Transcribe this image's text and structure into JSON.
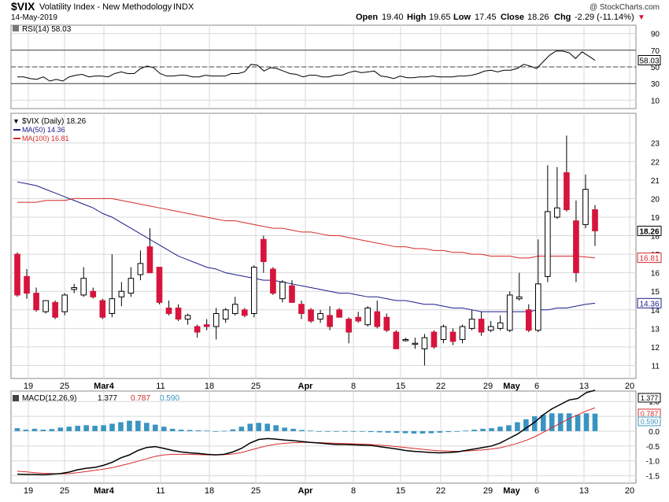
{
  "header": {
    "symbol": "$VIX",
    "name": "Volatility Index - New Methodology",
    "exchange": "INDX",
    "date": "14-May-2019",
    "watermark": "@ StockCharts.com",
    "open_label": "Open",
    "open": "19.40",
    "high_label": "High",
    "high": "19.65",
    "low_label": "Low",
    "low": "17.45",
    "close_label": "Close",
    "close": "18.26",
    "chg_label": "Chg",
    "chg": "-2.29 (-11.14%)",
    "chg_arrow": "▼"
  },
  "colors": {
    "up": "#ffffff",
    "down": "#d6143c",
    "ma50": "#1c1c8c",
    "ma100": "#d62a2a",
    "macd": "#000000",
    "signal": "#d62a2a",
    "hist": "#3a94c2",
    "grid": "#d8d8d8"
  },
  "chart_data": [
    {
      "type": "line",
      "panel": "rsi",
      "legend": "RSI(14) 58.03",
      "last_value_label": "58.03",
      "ylim": [
        0,
        100
      ],
      "yticks": [
        10,
        30,
        50,
        70,
        90
      ],
      "reference_lines": [
        30,
        50,
        70
      ],
      "values": [
        38,
        38,
        36,
        35,
        38,
        33,
        35,
        33,
        38,
        40,
        41,
        38,
        39,
        39,
        38,
        42,
        44,
        42,
        42,
        48,
        51,
        49,
        42,
        39,
        39,
        40,
        40,
        38,
        38,
        40,
        39,
        39,
        39,
        42,
        42,
        44,
        53,
        52,
        45,
        49,
        48,
        45,
        42,
        41,
        38,
        40,
        40,
        38,
        38,
        40,
        40,
        43,
        45,
        43,
        44,
        45,
        39,
        38,
        36,
        39,
        37,
        37,
        38,
        38,
        39,
        38,
        38,
        38,
        39,
        39,
        40,
        42,
        45,
        46,
        44,
        46,
        46,
        48,
        53,
        51,
        48,
        56,
        64,
        69,
        69,
        67,
        60,
        68,
        63,
        58
      ]
    },
    {
      "type": "candlestick",
      "panel": "price",
      "legend": "$VIX (Daily) 18.26",
      "ylim": [
        10.3,
        24.6
      ],
      "yticks": [
        11,
        12,
        13,
        14,
        15,
        16,
        17,
        18,
        19,
        20,
        21,
        22,
        23
      ],
      "x_tick_labels": [
        "19",
        "25",
        "Mar4",
        "11",
        "18",
        "25",
        "Apr",
        "8",
        "15",
        "22",
        "29",
        "May",
        "6",
        "13",
        "20"
      ],
      "candles": [
        {
          "o": 17.0,
          "h": 17.1,
          "l": 14.7,
          "c": 14.8
        },
        {
          "o": 15.8,
          "h": 16.2,
          "l": 14.6,
          "c": 14.9
        },
        {
          "o": 14.9,
          "h": 15.2,
          "l": 13.9,
          "c": 14.0
        },
        {
          "o": 13.9,
          "h": 14.5,
          "l": 13.8,
          "c": 14.5
        },
        {
          "o": 14.4,
          "h": 14.5,
          "l": 13.5,
          "c": 13.6
        },
        {
          "o": 13.9,
          "h": 14.9,
          "l": 13.7,
          "c": 14.8
        },
        {
          "o": 15.1,
          "h": 15.4,
          "l": 14.9,
          "c": 15.2
        },
        {
          "o": 14.8,
          "h": 16.3,
          "l": 14.7,
          "c": 15.7
        },
        {
          "o": 15.0,
          "h": 15.2,
          "l": 14.6,
          "c": 14.7
        },
        {
          "o": 14.5,
          "h": 14.6,
          "l": 13.5,
          "c": 13.6
        },
        {
          "o": 13.8,
          "h": 17.0,
          "l": 13.6,
          "c": 14.6
        },
        {
          "o": 14.7,
          "h": 15.5,
          "l": 14.2,
          "c": 15.0
        },
        {
          "o": 14.9,
          "h": 16.3,
          "l": 14.7,
          "c": 15.7
        },
        {
          "o": 15.9,
          "h": 17.2,
          "l": 15.6,
          "c": 16.5
        },
        {
          "o": 17.4,
          "h": 18.4,
          "l": 16.1,
          "c": 16.0
        },
        {
          "o": 16.3,
          "h": 16.3,
          "l": 14.3,
          "c": 14.4
        },
        {
          "o": 14.1,
          "h": 14.5,
          "l": 13.7,
          "c": 13.8
        },
        {
          "o": 14.1,
          "h": 14.3,
          "l": 13.4,
          "c": 13.5
        },
        {
          "o": 13.5,
          "h": 13.8,
          "l": 13.2,
          "c": 13.7
        },
        {
          "o": 13.1,
          "h": 13.2,
          "l": 12.5,
          "c": 12.8
        },
        {
          "o": 13.2,
          "h": 13.5,
          "l": 12.9,
          "c": 13.1
        },
        {
          "o": 13.1,
          "h": 14.1,
          "l": 12.4,
          "c": 13.8
        },
        {
          "o": 13.5,
          "h": 14.1,
          "l": 13.3,
          "c": 14.0
        },
        {
          "o": 13.8,
          "h": 14.7,
          "l": 13.7,
          "c": 14.3
        },
        {
          "o": 14.0,
          "h": 14.1,
          "l": 13.6,
          "c": 13.7
        },
        {
          "o": 13.8,
          "h": 16.4,
          "l": 13.6,
          "c": 16.3
        },
        {
          "o": 17.8,
          "h": 18.0,
          "l": 16.0,
          "c": 16.6
        },
        {
          "o": 16.2,
          "h": 16.3,
          "l": 14.8,
          "c": 14.9
        },
        {
          "o": 14.6,
          "h": 15.6,
          "l": 14.4,
          "c": 15.5
        },
        {
          "o": 15.3,
          "h": 15.6,
          "l": 14.4,
          "c": 14.4
        },
        {
          "o": 14.3,
          "h": 14.5,
          "l": 13.5,
          "c": 13.8
        },
        {
          "o": 14.0,
          "h": 14.1,
          "l": 13.3,
          "c": 13.4
        },
        {
          "o": 13.5,
          "h": 14.0,
          "l": 13.3,
          "c": 13.8
        },
        {
          "o": 13.7,
          "h": 14.2,
          "l": 12.9,
          "c": 13.1
        },
        {
          "o": 14.0,
          "h": 14.1,
          "l": 13.6,
          "c": 13.6
        },
        {
          "o": 13.5,
          "h": 13.6,
          "l": 12.2,
          "c": 12.8
        },
        {
          "o": 13.6,
          "h": 13.9,
          "l": 13.3,
          "c": 13.4
        },
        {
          "o": 13.2,
          "h": 14.2,
          "l": 13.1,
          "c": 14.1
        },
        {
          "o": 13.9,
          "h": 14.5,
          "l": 13.0,
          "c": 13.1
        },
        {
          "o": 13.6,
          "h": 13.8,
          "l": 12.8,
          "c": 12.9
        },
        {
          "o": 12.8,
          "h": 12.9,
          "l": 11.9,
          "c": 11.9
        },
        {
          "o": 12.4,
          "h": 12.5,
          "l": 12.3,
          "c": 12.4
        },
        {
          "o": 12.2,
          "h": 12.5,
          "l": 11.9,
          "c": 12.2
        },
        {
          "o": 11.9,
          "h": 12.7,
          "l": 11.0,
          "c": 12.5
        },
        {
          "o": 12.8,
          "h": 12.9,
          "l": 11.9,
          "c": 12.0
        },
        {
          "o": 12.4,
          "h": 13.2,
          "l": 12.2,
          "c": 13.1
        },
        {
          "o": 12.8,
          "h": 13.0,
          "l": 12.1,
          "c": 12.3
        },
        {
          "o": 12.4,
          "h": 13.2,
          "l": 12.2,
          "c": 13.1
        },
        {
          "o": 13.0,
          "h": 14.0,
          "l": 12.9,
          "c": 13.5
        },
        {
          "o": 13.5,
          "h": 13.9,
          "l": 12.6,
          "c": 12.8
        },
        {
          "o": 12.9,
          "h": 13.4,
          "l": 12.8,
          "c": 13.1
        },
        {
          "o": 13.0,
          "h": 13.7,
          "l": 12.9,
          "c": 13.3
        },
        {
          "o": 12.9,
          "h": 15.0,
          "l": 12.8,
          "c": 14.8
        },
        {
          "o": 14.6,
          "h": 16.0,
          "l": 14.5,
          "c": 14.7
        },
        {
          "o": 14.0,
          "h": 14.3,
          "l": 12.8,
          "c": 12.9
        },
        {
          "o": 12.9,
          "h": 17.8,
          "l": 12.8,
          "c": 15.4
        },
        {
          "o": 15.8,
          "h": 21.8,
          "l": 15.5,
          "c": 19.3
        },
        {
          "o": 19.0,
          "h": 21.7,
          "l": 18.9,
          "c": 19.5
        },
        {
          "o": 21.4,
          "h": 23.4,
          "l": 19.3,
          "c": 19.4
        },
        {
          "o": 18.8,
          "h": 19.9,
          "l": 15.5,
          "c": 16.0
        },
        {
          "o": 18.6,
          "h": 21.3,
          "l": 18.4,
          "c": 20.5
        },
        {
          "o": 19.4,
          "h": 19.65,
          "l": 17.45,
          "c": 18.26
        }
      ],
      "moving_averages": [
        {
          "name": "MA(50) 14.36",
          "last": "14.36",
          "values": [
            20.9,
            20.8,
            20.7,
            20.5,
            20.3,
            20.1,
            19.9,
            19.7,
            19.5,
            19.2,
            19.0,
            18.7,
            18.4,
            18.1,
            17.8,
            17.5,
            17.2,
            16.9,
            16.7,
            16.5,
            16.3,
            16.2,
            16.0,
            15.9,
            15.8,
            15.7,
            15.6,
            15.6,
            15.5,
            15.4,
            15.3,
            15.2,
            15.1,
            15.0,
            14.9,
            14.9,
            14.8,
            14.7,
            14.7,
            14.6,
            14.5,
            14.5,
            14.4,
            14.3,
            14.3,
            14.2,
            14.1,
            14.1,
            14.0,
            13.9,
            13.9,
            13.9,
            13.9,
            13.9,
            13.9,
            14.0,
            14.0,
            14.1,
            14.1,
            14.2,
            14.3,
            14.36
          ]
        },
        {
          "name": "MA(100) 16.81",
          "last": "16.81",
          "values": [
            19.8,
            19.8,
            19.8,
            19.9,
            19.9,
            19.9,
            20.0,
            20.0,
            20.0,
            20.0,
            20.0,
            19.9,
            19.8,
            19.7,
            19.6,
            19.5,
            19.4,
            19.3,
            19.2,
            19.1,
            19.0,
            18.9,
            18.8,
            18.8,
            18.7,
            18.6,
            18.5,
            18.4,
            18.4,
            18.3,
            18.2,
            18.2,
            18.1,
            18.0,
            18.0,
            17.9,
            17.8,
            17.7,
            17.6,
            17.5,
            17.4,
            17.4,
            17.3,
            17.3,
            17.2,
            17.2,
            17.1,
            17.1,
            17.0,
            17.0,
            16.9,
            16.9,
            16.9,
            16.8,
            16.8,
            16.9,
            16.9,
            16.9,
            16.9,
            16.9,
            16.85,
            16.81
          ]
        }
      ],
      "last_close_label": "18.26"
    },
    {
      "type": "line",
      "panel": "macd",
      "legend_name": "MACD(12,26,9)",
      "macd_last": "1.377",
      "signal_last": "0.787",
      "hist_last": "0.590",
      "ylim": [
        -1.75,
        1.35
      ],
      "yticks": [
        "-1.5",
        "-1.0",
        "-0.5",
        "0.0",
        "0.5",
        "1.0"
      ],
      "macd": [
        -1.45,
        -1.46,
        -1.46,
        -1.47,
        -1.45,
        -1.43,
        -1.38,
        -1.3,
        -1.25,
        -1.22,
        -1.15,
        -1.05,
        -0.9,
        -0.8,
        -0.65,
        -0.55,
        -0.52,
        -0.58,
        -0.65,
        -0.7,
        -0.73,
        -0.75,
        -0.78,
        -0.8,
        -0.78,
        -0.7,
        -0.58,
        -0.4,
        -0.28,
        -0.25,
        -0.27,
        -0.3,
        -0.32,
        -0.35,
        -0.38,
        -0.4,
        -0.43,
        -0.45,
        -0.45,
        -0.46,
        -0.47,
        -0.48,
        -0.52,
        -0.56,
        -0.6,
        -0.65,
        -0.68,
        -0.7,
        -0.72,
        -0.73,
        -0.72,
        -0.7,
        -0.65,
        -0.6,
        -0.55,
        -0.5,
        -0.4,
        -0.25,
        -0.1,
        0.1,
        0.3,
        0.55,
        0.75,
        0.9,
        1.05,
        1.1,
        1.3,
        1.377
      ],
      "signal": [
        -1.35,
        -1.37,
        -1.4,
        -1.42,
        -1.43,
        -1.44,
        -1.43,
        -1.4,
        -1.36,
        -1.32,
        -1.28,
        -1.23,
        -1.16,
        -1.09,
        -1.01,
        -0.93,
        -0.85,
        -0.8,
        -0.78,
        -0.78,
        -0.78,
        -0.79,
        -0.8,
        -0.8,
        -0.79,
        -0.77,
        -0.72,
        -0.64,
        -0.56,
        -0.49,
        -0.44,
        -0.41,
        -0.39,
        -0.38,
        -0.38,
        -0.39,
        -0.4,
        -0.41,
        -0.42,
        -0.43,
        -0.44,
        -0.45,
        -0.47,
        -0.49,
        -0.52,
        -0.55,
        -0.58,
        -0.61,
        -0.64,
        -0.66,
        -0.67,
        -0.68,
        -0.67,
        -0.65,
        -0.63,
        -0.6,
        -0.56,
        -0.49,
        -0.41,
        -0.31,
        -0.19,
        -0.04,
        0.12,
        0.27,
        0.42,
        0.55,
        0.68,
        0.787
      ],
      "hist": [
        0.1,
        0.05,
        0.08,
        0.05,
        0.07,
        0.12,
        0.15,
        0.18,
        0.2,
        0.18,
        0.2,
        0.25,
        0.3,
        0.35,
        0.35,
        0.28,
        0.22,
        0.15,
        0.08,
        0.05,
        0.04,
        0.03,
        0.02,
        0.0,
        0.01,
        0.06,
        0.15,
        0.25,
        0.28,
        0.25,
        0.2,
        0.12,
        0.08,
        0.04,
        0.02,
        0.0,
        0.0,
        -0.02,
        -0.02,
        -0.02,
        -0.02,
        -0.03,
        -0.04,
        -0.05,
        -0.06,
        -0.07,
        -0.08,
        -0.08,
        -0.07,
        -0.05,
        -0.03,
        -0.01,
        0.02,
        0.05,
        0.08,
        0.1,
        0.15,
        0.2,
        0.3,
        0.4,
        0.5,
        0.55,
        0.6,
        0.6,
        0.6,
        0.55,
        0.6,
        0.59
      ]
    }
  ]
}
